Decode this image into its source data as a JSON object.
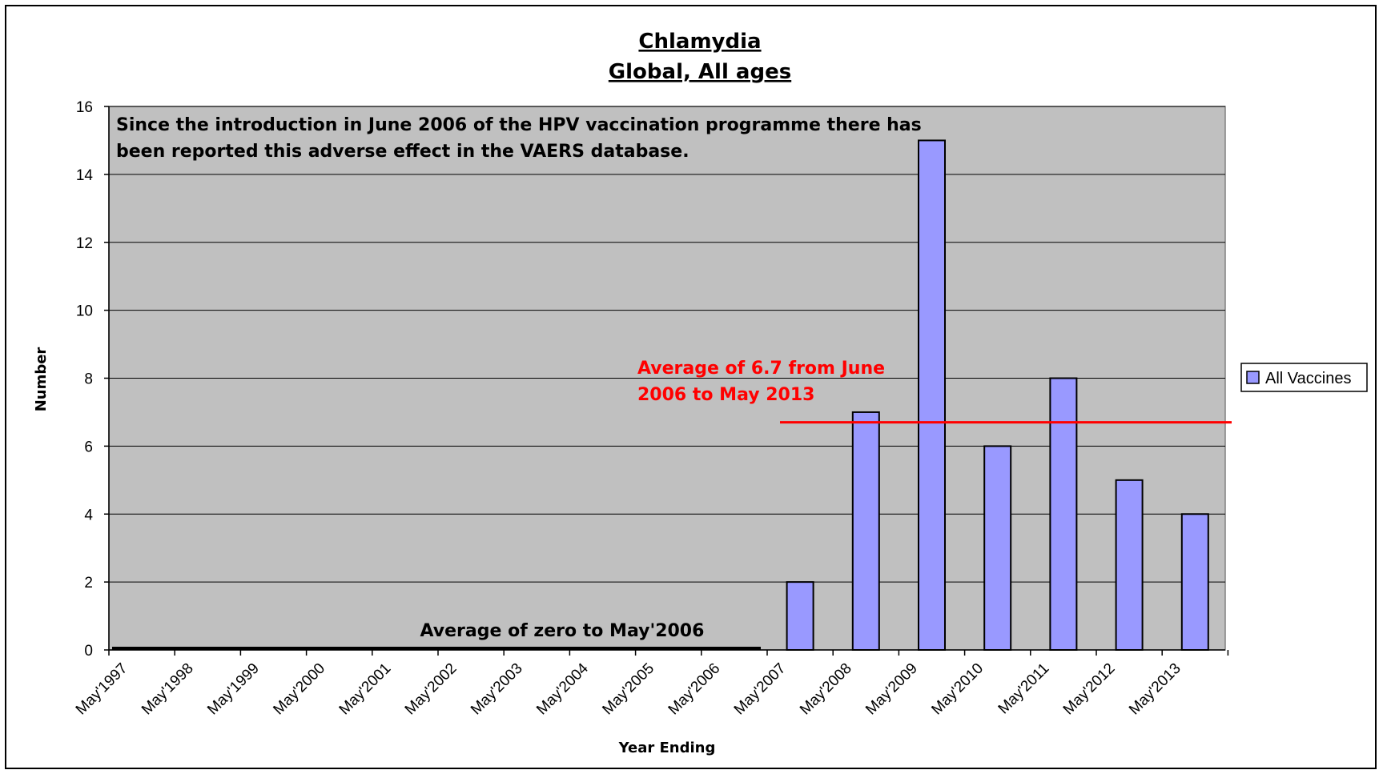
{
  "chart_data": {
    "type": "bar",
    "title": "Chlamydia",
    "subtitle": "Global, All ages",
    "xlabel": "Year Ending",
    "ylabel": "Number",
    "ylim": [
      0,
      16
    ],
    "yticks": [
      "0",
      "2",
      "4",
      "6",
      "8",
      "10",
      "12",
      "14",
      "16"
    ],
    "grid": true,
    "legend_position": "right",
    "categories": [
      "May'1997",
      "May'1998",
      "May'1999",
      "May'2000",
      "May'2001",
      "May'2002",
      "May'2003",
      "May'2004",
      "May'2005",
      "May'2006",
      "May'2007",
      "May'2008",
      "May'2009",
      "May'2010",
      "May'2011",
      "May'2012",
      "May'2013"
    ],
    "series": [
      {
        "name": "All Vaccines",
        "color": "#9999ff",
        "values": [
          0,
          0,
          0,
          0,
          0,
          0,
          0,
          0,
          0,
          0,
          2,
          7,
          15,
          6,
          8,
          5,
          4
        ]
      }
    ],
    "annotations": {
      "intro_line1": "Since the introduction in June 2006 of the HPV vaccination programme there has",
      "intro_line2": "been reported this adverse effect in the VAERS database.",
      "avg_after_line1": "Average of 6.7  from June",
      "avg_after_line2": "2006 to May 2013",
      "avg_after_value": 6.7,
      "avg_before": "Average of zero to May'2006",
      "avg_before_value": 0
    },
    "colors": {
      "plot_background": "#c0c0c0",
      "gridline": "#000000",
      "average_line_after": "#ff0000",
      "average_line_before": "#000000"
    }
  }
}
